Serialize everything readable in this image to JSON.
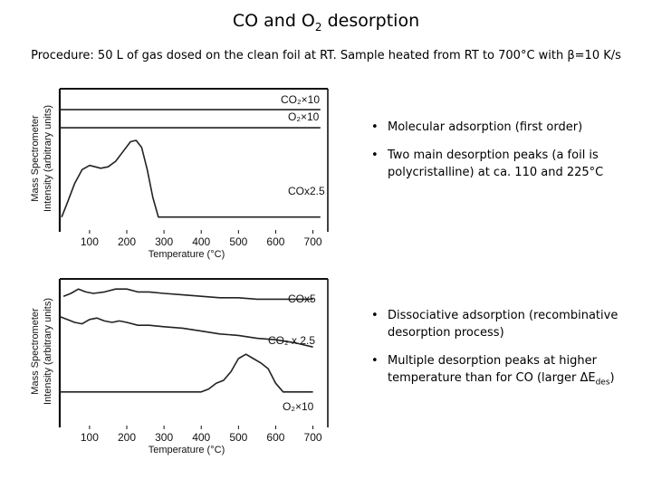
{
  "slide": {
    "title_main": "CO and O",
    "title_sub": "2",
    "title_end": " desorption",
    "procedure": "Procedure: 50 L of gas dosed on the clean foil at RT. Sample heated from RT to 700°C with β=10 K/s"
  },
  "bullets_top": [
    "Molecular adsorption (first order)",
    "Two main desorption peaks (a foil is polycristalline) at ca. 110 and 225°C"
  ],
  "bullets_bottom": [
    "Dissociative adsorption (recombinative desorption process)",
    {
      "prefix": "Multiple desorption peaks at higher temperature than for CO (larger ΔE",
      "subscript": "des",
      "suffix": ")"
    }
  ],
  "chart_data": [
    {
      "type": "line",
      "xlabel": "Temperature  (°C)",
      "ylabel": [
        "Mass  Spectrometer",
        "Intensity (arbitrary units)"
      ],
      "xlim": [
        20,
        740
      ],
      "ylim": [
        0,
        100
      ],
      "x_ticks": [
        100,
        200,
        300,
        400,
        500,
        600,
        700
      ],
      "grid": false,
      "series": [
        {
          "name": "CO₂×10",
          "x": [
            20,
            720
          ],
          "y": [
            85,
            85
          ]
        },
        {
          "name": "O₂×10",
          "x": [
            20,
            720
          ],
          "y": [
            72,
            72
          ]
        },
        {
          "name": "COx2.5",
          "x": [
            25,
            40,
            60,
            80,
            100,
            115,
            130,
            150,
            170,
            190,
            210,
            225,
            240,
            255,
            270,
            285,
            300,
            720
          ],
          "y": [
            8,
            18,
            32,
            42,
            45,
            44,
            43,
            44,
            48,
            55,
            62,
            63,
            58,
            42,
            22,
            8,
            8,
            8
          ]
        }
      ]
    },
    {
      "type": "line",
      "xlabel": "Temperature  (°C)",
      "ylabel": [
        "Mass  Spectrometer",
        "Intensity (arbitrary units)"
      ],
      "xlim": [
        20,
        740
      ],
      "ylim": [
        0,
        100
      ],
      "x_ticks": [
        100,
        200,
        300,
        400,
        500,
        600,
        700
      ],
      "grid": false,
      "series": [
        {
          "name": "COx5",
          "x": [
            30,
            50,
            70,
            90,
            110,
            140,
            170,
            200,
            230,
            260,
            300,
            350,
            400,
            450,
            500,
            550,
            600,
            650,
            700
          ],
          "y": [
            88,
            90,
            93,
            91,
            90,
            91,
            93,
            93,
            91,
            91,
            90,
            89,
            88,
            87,
            87,
            86,
            86,
            86,
            86
          ]
        },
        {
          "name": "CO₂ x 2.5",
          "x": [
            20,
            40,
            60,
            80,
            100,
            120,
            140,
            160,
            180,
            200,
            230,
            260,
            300,
            350,
            400,
            450,
            500,
            550,
            600,
            650,
            700
          ],
          "y": [
            74,
            72,
            70,
            69,
            72,
            73,
            71,
            70,
            71,
            70,
            68,
            68,
            67,
            66,
            64,
            62,
            61,
            59,
            58,
            56,
            53
          ]
        },
        {
          "name": "O₂×10",
          "x": [
            20,
            400,
            420,
            440,
            460,
            480,
            500,
            520,
            540,
            560,
            580,
            600,
            620,
            700
          ],
          "y": [
            22,
            22,
            24,
            28,
            30,
            36,
            45,
            48,
            45,
            42,
            38,
            28,
            22,
            22
          ]
        }
      ]
    }
  ],
  "colors": {
    "line": "#222222",
    "frame": "#111111",
    "background": "#ffffff"
  }
}
